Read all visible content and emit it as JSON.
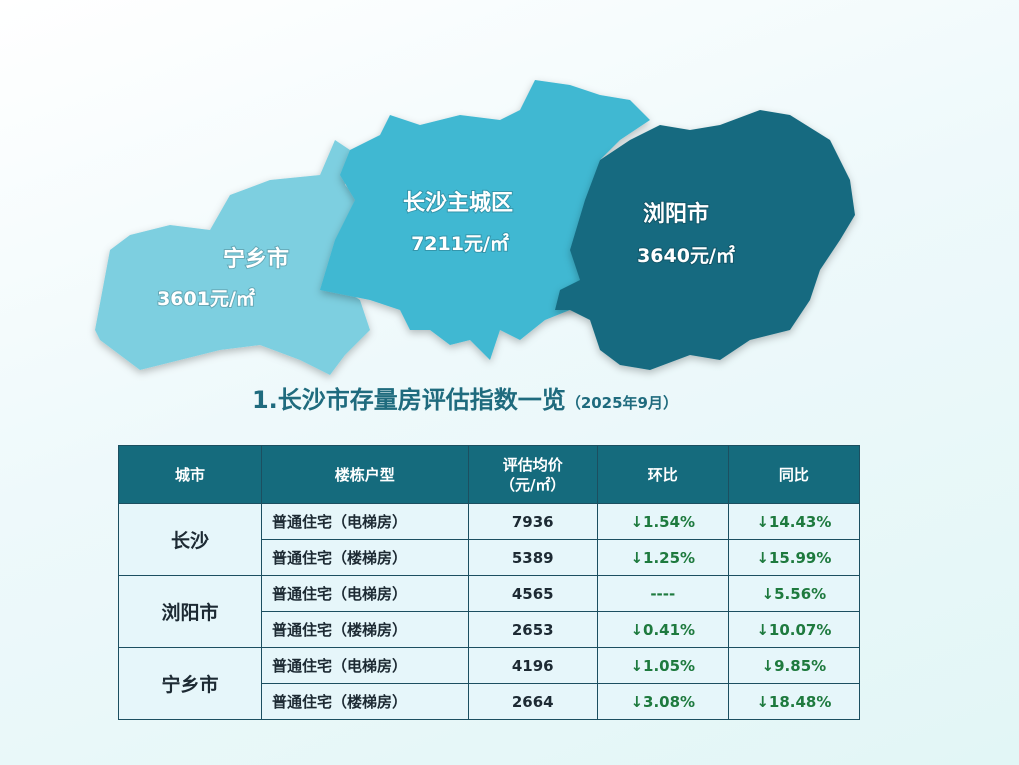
{
  "map": {
    "regions": [
      {
        "name": "宁乡市",
        "price": "3601元/㎡"
      },
      {
        "name": "长沙主城区",
        "price": "7211元/㎡"
      },
      {
        "name": "浏阳市",
        "price": "3640元/㎡"
      }
    ]
  },
  "header": {
    "title": "1.长沙市存量房评估指数一览",
    "subtitle": "（2025年9月）"
  },
  "table": {
    "columns": [
      "城市",
      "楼栋户型",
      "评估均价\n（元/㎡）",
      "环比",
      "同比"
    ],
    "groups": [
      {
        "city": "长沙",
        "rows": [
          [
            "普通住宅（电梯房）",
            "7936",
            "↓1.54%",
            "↓14.43%"
          ],
          [
            "普通住宅（楼梯房）",
            "5389",
            "↓1.25%",
            "↓15.99%"
          ]
        ]
      },
      {
        "city": "浏阳市",
        "rows": [
          [
            "普通住宅（电梯房）",
            "4565",
            "----",
            "↓5.56%"
          ],
          [
            "普通住宅（楼梯房）",
            "2653",
            "↓0.41%",
            "↓10.07%"
          ]
        ]
      },
      {
        "city": "宁乡市",
        "rows": [
          [
            "普通住宅（电梯房）",
            "4196",
            "↓1.05%",
            "↓9.85%"
          ],
          [
            "普通住宅（楼梯房）",
            "2664",
            "↓3.08%",
            "↓18.48%"
          ]
        ]
      }
    ]
  }
}
